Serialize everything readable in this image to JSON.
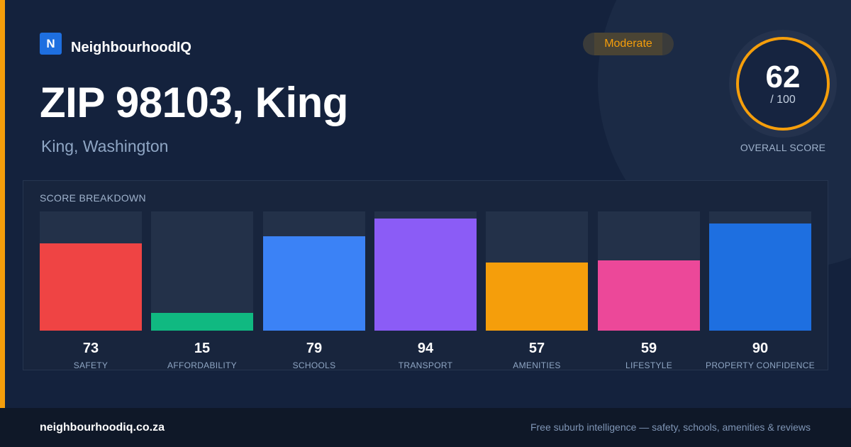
{
  "brand": {
    "logo_letter": "N",
    "name": "NeighbourhoodIQ"
  },
  "location": {
    "title": "ZIP 98103, King",
    "subtitle": "King, Washington"
  },
  "rating": {
    "label": "Moderate"
  },
  "overall": {
    "score": "62",
    "max": "/ 100",
    "label": "OVERALL SCORE"
  },
  "breakdown": {
    "title": "SCORE BREAKDOWN"
  },
  "chart_data": {
    "type": "bar",
    "categories": [
      "SAFETY",
      "AFFORDABILITY",
      "SCHOOLS",
      "TRANSPORT",
      "AMENITIES",
      "LIFESTYLE",
      "PROPERTY CONFIDENCE"
    ],
    "values": [
      73,
      15,
      79,
      94,
      57,
      59,
      90
    ],
    "colors": [
      "#ef4444",
      "#10b981",
      "#3b82f6",
      "#8b5cf6",
      "#f59e0b",
      "#ec4899",
      "#1e6fe0"
    ],
    "ylim": [
      0,
      100
    ]
  },
  "footer": {
    "domain": "neighbourhoodiq.co.za",
    "tagline": "Free suburb intelligence — safety, schools, amenities & reviews"
  },
  "colors": {
    "accent": "#f59e0b",
    "background": "#14223d",
    "brand": "#1e6fe0"
  }
}
